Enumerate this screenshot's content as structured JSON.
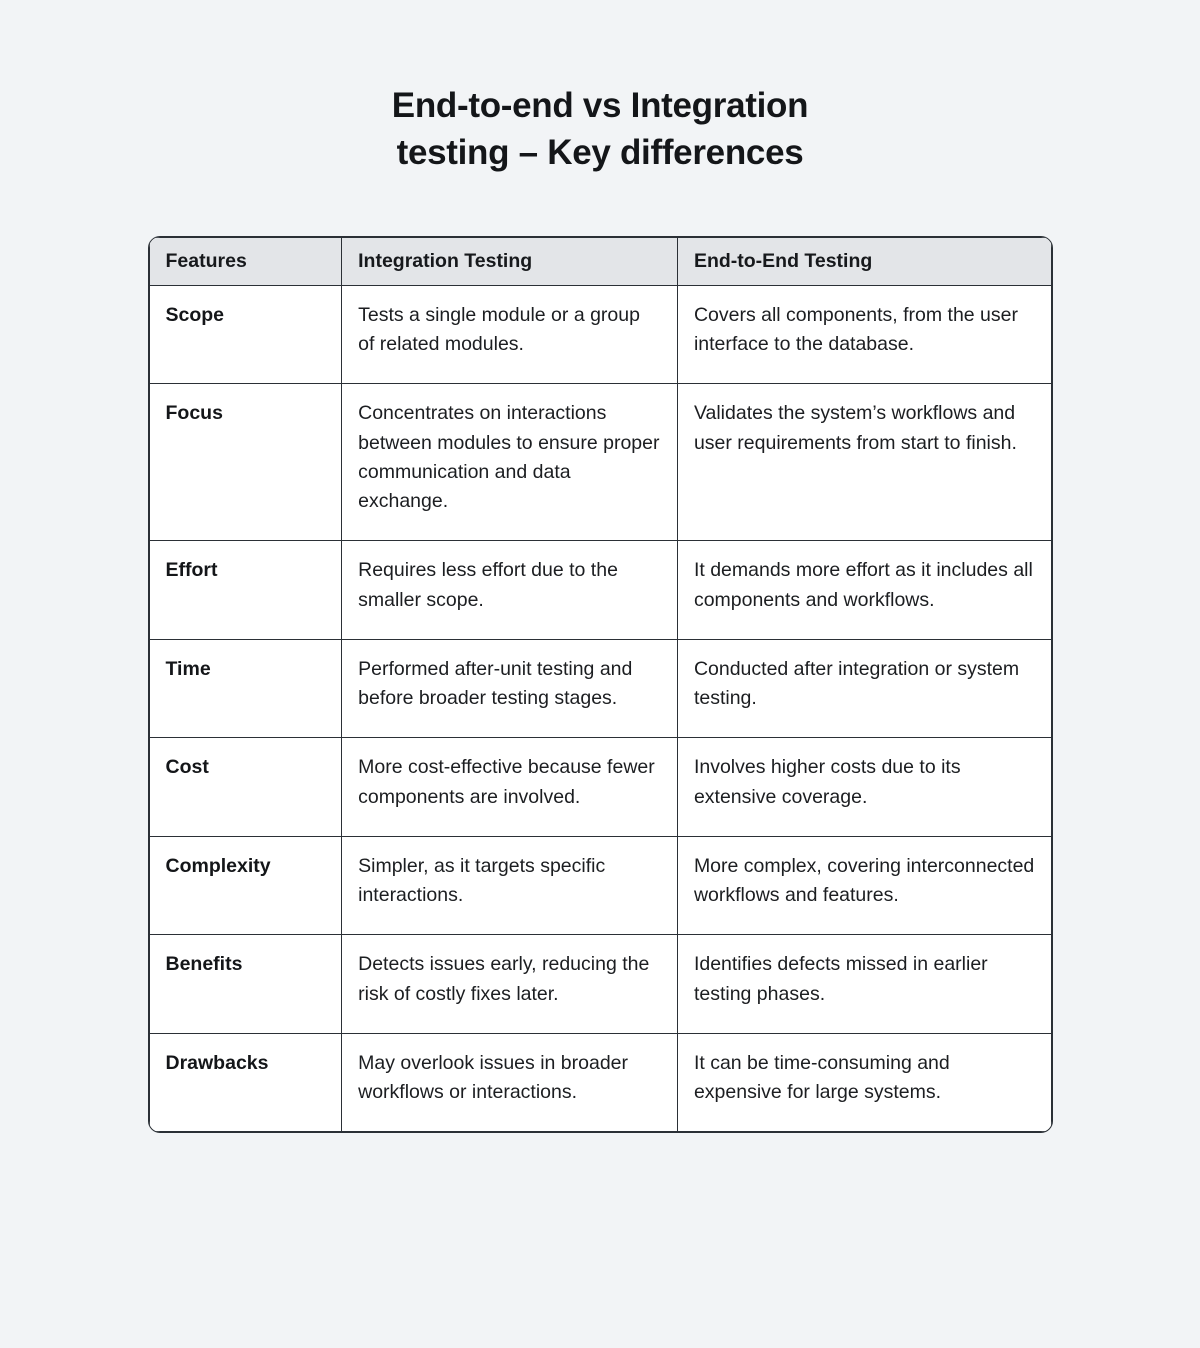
{
  "title": {
    "line1": "End-to-end vs Integration",
    "line2": "testing – Key differences"
  },
  "table": {
    "headers": [
      "Features",
      "Integration Testing",
      "End-to-End Testing"
    ],
    "rows": [
      {
        "feature": "Scope",
        "integration": "Tests a single module or a group of related modules.",
        "e2e": "Covers all components, from the user interface to the database."
      },
      {
        "feature": "Focus",
        "integration": "Concentrates on interactions between modules to ensure proper communication and data exchange.",
        "e2e": "Validates the system’s workflows and user requirements from start to finish."
      },
      {
        "feature": "Effort",
        "integration": "Requires less effort due to the smaller scope.",
        "e2e": "It demands more effort as it includes all components and workflows."
      },
      {
        "feature": "Time",
        "integration": "Performed after-unit testing and before broader testing stages.",
        "e2e": "Conducted after integration or system testing."
      },
      {
        "feature": "Cost",
        "integration": "More cost-effective because fewer components are involved.",
        "e2e": "Involves higher costs due to its extensive coverage."
      },
      {
        "feature": "Complexity",
        "integration": "Simpler, as it targets specific interactions.",
        "e2e": "More complex, covering interconnected workflows and features."
      },
      {
        "feature": "Benefits",
        "integration": "Detects issues early, reducing the risk of costly fixes later.",
        "e2e": "Identifies defects missed in earlier testing phases."
      },
      {
        "feature": "Drawbacks",
        "integration": "May overlook issues in broader workflows or interactions.",
        "e2e": "It can be time-consuming and expensive for large systems."
      }
    ]
  },
  "colors": {
    "page_background": "#f2f4f6",
    "header_background": "#e3e5e8",
    "table_background": "#ffffff",
    "border": "#2b3036",
    "text": "#17191c"
  }
}
